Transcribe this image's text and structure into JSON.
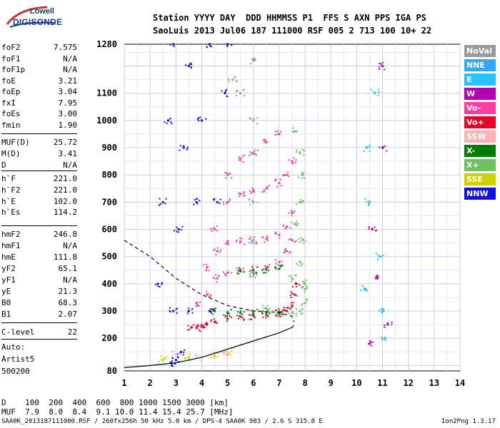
{
  "logo": {
    "line1": "Lowell",
    "line2": "DIGISONDE"
  },
  "header": {
    "row1": "Station YYYY DAY  DDD HHMMSS P1  FFS S AXN PPS IGA PS",
    "row2": "SaoLuis 2013 Jul06 187 111000 RSF 005 2 713 100 10+ 22"
  },
  "params": [
    {
      "k": "foF2",
      "v": "7.575"
    },
    {
      "k": "foF1",
      "v": "N/A"
    },
    {
      "k": "foF1p",
      "v": "N/A"
    },
    {
      "k": "foE",
      "v": "3.21"
    },
    {
      "k": "foEp",
      "v": "3.04"
    },
    {
      "k": "fxI",
      "v": "7.95"
    },
    {
      "k": "foEs",
      "v": "3.00"
    },
    {
      "k": "fmin",
      "v": "1.90"
    },
    {
      "k": "MUF(D)",
      "v": "25.72"
    },
    {
      "k": "M(D)",
      "v": "3.41"
    },
    {
      "k": "D",
      "v": "N/A"
    },
    {
      "k": "h`F",
      "v": "221.0"
    },
    {
      "k": "h`F2",
      "v": "221.0"
    },
    {
      "k": "h`E",
      "v": "102.0"
    },
    {
      "k": "h`Es",
      "v": "114.2"
    },
    {
      "k": "hmF2",
      "v": "246.8"
    },
    {
      "k": "hmF1",
      "v": "N/A"
    },
    {
      "k": "hmE",
      "v": "111.8"
    },
    {
      "k": "yF2",
      "v": "65.1"
    },
    {
      "k": "yF1",
      "v": "N/A"
    },
    {
      "k": "yE",
      "v": "21.3"
    },
    {
      "k": "B0",
      "v": "68.3"
    },
    {
      "k": "B1",
      "v": "2.07"
    },
    {
      "k": "C-level",
      "v": "22"
    }
  ],
  "auto": {
    "line1": "Auto:",
    "line2": "Artist5",
    "line3": "500200"
  },
  "legend": [
    {
      "label": "NoVal",
      "color": "#9a9a9a"
    },
    {
      "label": "NNE",
      "color": "#33a6ff"
    },
    {
      "label": "E",
      "color": "#29c3ff"
    },
    {
      "label": "W",
      "color": "#b400b4"
    },
    {
      "label": "Vo-",
      "color": "#ff3ca0"
    },
    {
      "label": "Vo+",
      "color": "#e6002a"
    },
    {
      "label": "SSW",
      "color": "#ffb0b0"
    },
    {
      "label": "X-",
      "color": "#007d00"
    },
    {
      "label": "X+",
      "color": "#6ec060"
    },
    {
      "label": "SSE",
      "color": "#d0d000"
    },
    {
      "label": "NNW",
      "color": "#1010e0"
    }
  ],
  "bottom": {
    "d_row": "D    100  200  400  600  800 1000 1500 3000 [km]",
    "muf_row": "MUF  7.9  8.0  8.4  9.1 10.0 11.4 15.4 25.7 [MHz]"
  },
  "footer": {
    "left": "SAA0K_2013187111000.RSF / 260fx256h 50 kHz 5.0 km / DPS-4 SAA0K 903 / 2.6 S 315.8 E",
    "right": "Ion2Png 1.3.17"
  },
  "chart_data": {
    "type": "scatter",
    "xlim": [
      1,
      14
    ],
    "ylim": [
      80,
      1280
    ],
    "x_ticks": [
      1,
      2,
      3,
      4,
      5,
      6,
      7,
      8,
      9,
      10,
      11,
      12,
      13,
      14
    ],
    "y_ticks": [
      80,
      200,
      300,
      400,
      500,
      600,
      700,
      800,
      900,
      1000,
      1100,
      1280
    ],
    "grid": true,
    "legend_placement": "right",
    "series": [
      {
        "name": "Vo+",
        "color": "#e6002a",
        "points": [
          [
            3.6,
            240
          ],
          [
            3.8,
            238
          ],
          [
            4.0,
            243
          ],
          [
            4.2,
            250
          ],
          [
            4.5,
            260
          ],
          [
            5.0,
            272
          ],
          [
            5.5,
            279
          ],
          [
            6.0,
            282
          ],
          [
            6.5,
            285
          ],
          [
            7.0,
            290
          ],
          [
            7.3,
            300
          ],
          [
            7.5,
            320
          ],
          [
            7.6,
            360
          ],
          [
            7.65,
            400
          ]
        ]
      },
      {
        "name": "Vo-",
        "color": "#ff3ca0",
        "points": [
          [
            3.8,
            330
          ],
          [
            4.2,
            360
          ],
          [
            4.6,
            420
          ],
          [
            5.0,
            440
          ],
          [
            5.5,
            448
          ],
          [
            6.0,
            452
          ],
          [
            6.5,
            458
          ],
          [
            7.0,
            480
          ],
          [
            7.3,
            520
          ],
          [
            7.5,
            560
          ],
          [
            4.2,
            460
          ],
          [
            4.6,
            520
          ],
          [
            5.0,
            548
          ],
          [
            5.5,
            555
          ],
          [
            6.0,
            560
          ],
          [
            6.5,
            565
          ],
          [
            7.0,
            580
          ],
          [
            7.3,
            610
          ],
          [
            7.5,
            660
          ],
          [
            4.5,
            600
          ],
          [
            5.0,
            700
          ],
          [
            5.5,
            730
          ],
          [
            6.0,
            740
          ],
          [
            6.5,
            750
          ],
          [
            7.0,
            770
          ],
          [
            7.3,
            800
          ],
          [
            7.5,
            850
          ],
          [
            5.0,
            800
          ],
          [
            5.5,
            860
          ],
          [
            6.0,
            880
          ],
          [
            6.5,
            920
          ],
          [
            7.0,
            950
          ]
        ]
      },
      {
        "name": "X+",
        "color": "#6ec060",
        "points": [
          [
            6.5,
            310
          ],
          [
            7.0,
            300
          ],
          [
            7.5,
            295
          ],
          [
            7.8,
            300
          ],
          [
            8.0,
            330
          ],
          [
            8.0,
            380
          ],
          [
            8.0,
            400
          ],
          [
            7.5,
            420
          ],
          [
            7.8,
            480
          ],
          [
            7.9,
            560
          ],
          [
            7.6,
            620
          ],
          [
            7.8,
            700
          ],
          [
            7.9,
            800
          ],
          [
            7.8,
            880
          ],
          [
            7.6,
            960
          ]
        ]
      },
      {
        "name": "X-",
        "color": "#007d00",
        "points": [
          [
            4.5,
            300
          ],
          [
            5.0,
            295
          ],
          [
            5.5,
            293
          ],
          [
            6.0,
            292
          ],
          [
            6.5,
            294
          ],
          [
            7.0,
            296
          ],
          [
            5.5,
            446
          ],
          [
            6.0,
            449
          ],
          [
            6.5,
            452
          ],
          [
            7.0,
            455
          ]
        ]
      },
      {
        "name": "NNW",
        "color": "#1010e0",
        "points": [
          [
            2.3,
            400
          ],
          [
            2.5,
            700
          ],
          [
            2.7,
            1000
          ],
          [
            2.9,
            1280
          ],
          [
            2.9,
            300
          ],
          [
            3.1,
            600
          ],
          [
            3.3,
            900
          ],
          [
            3.5,
            1200
          ],
          [
            3.5,
            300
          ],
          [
            3.8,
            700
          ],
          [
            4.0,
            1000
          ],
          [
            4.3,
            1280
          ],
          [
            4.3,
            300
          ],
          [
            4.6,
            700
          ],
          [
            4.9,
            1100
          ],
          [
            5.0,
            1280
          ],
          [
            3.2,
            150
          ],
          [
            3.0,
            120
          ],
          [
            2.8,
            110
          ]
        ]
      },
      {
        "name": "NoVal",
        "color": "#9a9a9a",
        "points": [
          [
            6.0,
            430
          ],
          [
            6.0,
            560
          ],
          [
            6.0,
            700
          ],
          [
            6.0,
            880
          ],
          [
            6.0,
            1000
          ],
          [
            5.2,
            1150
          ],
          [
            5.5,
            1100
          ],
          [
            6.0,
            1220
          ]
        ]
      },
      {
        "name": "E",
        "color": "#29c3ff",
        "points": [
          [
            10.3,
            380
          ],
          [
            10.5,
            700
          ],
          [
            10.7,
            1100
          ],
          [
            10.9,
            500
          ],
          [
            11.0,
            300
          ],
          [
            10.4,
            900
          ],
          [
            11.1,
            200
          ]
        ]
      },
      {
        "name": "W",
        "color": "#b400b4",
        "points": [
          [
            10.6,
            600
          ],
          [
            10.8,
            420
          ],
          [
            11.0,
            900
          ],
          [
            11.2,
            250
          ],
          [
            10.5,
            180
          ],
          [
            11.0,
            1200
          ]
        ]
      },
      {
        "name": "SSE",
        "color": "#d0d000",
        "points": [
          [
            3.5,
            130
          ],
          [
            4.5,
            135
          ],
          [
            5.0,
            140
          ],
          [
            2.5,
            120
          ]
        ]
      },
      {
        "name": "SSW",
        "color": "#ffb0b0",
        "points": [
          [
            3.0,
            140
          ],
          [
            3.8,
            130
          ],
          [
            4.8,
            150
          ]
        ]
      }
    ]
  }
}
